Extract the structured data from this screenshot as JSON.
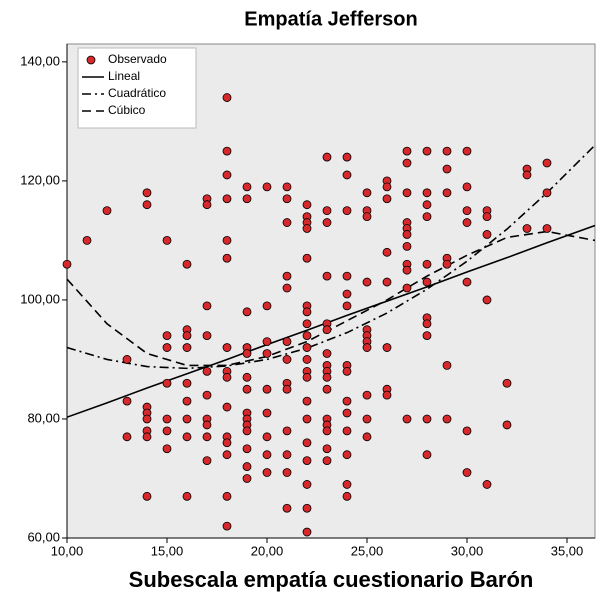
{
  "chart_data": {
    "type": "scatter",
    "title": "Empatía Jefferson",
    "x_label": "Subescala empatía cuestionario Barón",
    "xlim": [
      10,
      36.4
    ],
    "ylim": [
      60,
      143
    ],
    "xticks": [
      {
        "value": 10,
        "label": "10,00"
      },
      {
        "value": 15,
        "label": "15,00"
      },
      {
        "value": 20,
        "label": "20,00"
      },
      {
        "value": 25,
        "label": "25,00"
      },
      {
        "value": 30,
        "label": "30,00"
      },
      {
        "value": 35,
        "label": "35,00"
      }
    ],
    "yticks": [
      {
        "value": 60,
        "label": "60,00"
      },
      {
        "value": 80,
        "label": "80,00"
      },
      {
        "value": 100,
        "label": "100,00"
      },
      {
        "value": 120,
        "label": "120,00"
      },
      {
        "value": 140,
        "label": "140,00"
      }
    ],
    "legend": "top-left",
    "series": [
      {
        "name": "Observado",
        "type": "scatter",
        "color": "#d7282c",
        "x": [
          10,
          11,
          12,
          13,
          13,
          13,
          14,
          14,
          14,
          14,
          14,
          14,
          14,
          14,
          15,
          15,
          15,
          15,
          15,
          15,
          15,
          16,
          16,
          16,
          16,
          16,
          16,
          16,
          16,
          16,
          17,
          17,
          17,
          17,
          17,
          17,
          17,
          17,
          17,
          17,
          18,
          18,
          18,
          18,
          18,
          18,
          18,
          18,
          18,
          18,
          18,
          18,
          18,
          18,
          18,
          19,
          19,
          19,
          19,
          19,
          19,
          19,
          19,
          19,
          19,
          19,
          19,
          19,
          19,
          20,
          20,
          20,
          20,
          20,
          20,
          20,
          20,
          20,
          21,
          21,
          21,
          21,
          21,
          21,
          21,
          21,
          21,
          21,
          21,
          21,
          21,
          22,
          22,
          22,
          22,
          22,
          22,
          22,
          22,
          22,
          22,
          22,
          22,
          22,
          22,
          22,
          22,
          22,
          22,
          22,
          22,
          23,
          23,
          23,
          23,
          23,
          23,
          23,
          23,
          23,
          23,
          23,
          23,
          23,
          23,
          23,
          23,
          24,
          24,
          24,
          24,
          24,
          24,
          24,
          24,
          24,
          24,
          24,
          24,
          24,
          24,
          25,
          25,
          25,
          25,
          25,
          25,
          25,
          25,
          25,
          25,
          25,
          26,
          26,
          26,
          26,
          26,
          26,
          26,
          26,
          27,
          27,
          27,
          27,
          27,
          27,
          27,
          27,
          27,
          27,
          27,
          28,
          28,
          28,
          28,
          28,
          28,
          28,
          28,
          28,
          28,
          28,
          29,
          29,
          29,
          29,
          29,
          29,
          29,
          30,
          30,
          30,
          30,
          30,
          30,
          30,
          31,
          31,
          31,
          31,
          31,
          32,
          32,
          33,
          33,
          33,
          34,
          34,
          34
        ],
        "values": [
          106,
          110,
          115,
          90,
          83,
          77,
          118,
          116,
          82,
          81,
          80,
          78,
          77,
          67,
          110,
          94,
          92,
          86,
          80,
          78,
          75,
          106,
          95,
          94,
          92,
          86,
          83,
          80,
          77,
          67,
          117,
          116,
          99,
          94,
          88,
          84,
          80,
          79,
          77,
          73,
          134,
          125,
          121,
          117,
          110,
          107,
          92,
          88,
          87,
          82,
          77,
          76,
          74,
          67,
          62,
          119,
          117,
          98,
          92,
          91,
          87,
          85,
          81,
          80,
          79,
          78,
          75,
          72,
          70,
          119,
          99,
          93,
          91,
          85,
          81,
          77,
          74,
          71,
          119,
          117,
          113,
          104,
          102,
          93,
          90,
          86,
          85,
          78,
          74,
          71,
          65,
          116,
          114,
          113,
          112,
          107,
          99,
          98,
          96,
          94,
          92,
          90,
          88,
          87,
          83,
          80,
          76,
          73,
          69,
          65,
          61,
          124,
          115,
          113,
          104,
          96,
          95,
          91,
          89,
          88,
          87,
          85,
          80,
          79,
          78,
          75,
          73,
          124,
          121,
          115,
          104,
          101,
          99,
          89,
          88,
          83,
          81,
          78,
          74,
          69,
          67,
          118,
          115,
          114,
          103,
          95,
          94,
          93,
          92,
          84,
          80,
          77,
          120,
          119,
          117,
          108,
          103,
          92,
          85,
          84,
          125,
          123,
          118,
          113,
          112,
          111,
          109,
          106,
          105,
          102,
          80,
          125,
          118,
          116,
          114,
          106,
          103,
          97,
          96,
          94,
          80,
          74,
          125,
          122,
          118,
          107,
          106,
          89,
          80,
          125,
          119,
          115,
          113,
          103,
          78,
          71,
          115,
          114,
          111,
          100,
          69,
          86,
          79,
          122,
          121,
          112,
          123,
          118,
          112
        ]
      },
      {
        "name": "Lineal",
        "type": "line",
        "color": "#000000",
        "dash": "solid",
        "x": [
          10,
          12,
          14,
          16,
          18,
          20,
          22,
          24,
          26,
          28,
          30,
          32,
          34,
          36.4
        ],
        "values": [
          80.3,
          82.7,
          85.2,
          87.6,
          90.0,
          92.5,
          94.9,
          97.4,
          99.8,
          102.2,
          104.7,
          107.1,
          109.6,
          112.5
        ]
      },
      {
        "name": "Cuadrático",
        "type": "line",
        "color": "#000000",
        "dash": "dashdot",
        "x": [
          10,
          12,
          14,
          16,
          18,
          20,
          22,
          24,
          26,
          28,
          30,
          32,
          34,
          36.4
        ],
        "values": [
          92,
          90,
          88.8,
          88.5,
          88.9,
          90,
          91.9,
          94.5,
          97.8,
          101.8,
          106.5,
          111.9,
          118,
          126
        ]
      },
      {
        "name": "Cúbico",
        "type": "line",
        "color": "#000000",
        "dash": "dash",
        "x": [
          10,
          12,
          14,
          16,
          18,
          20,
          22,
          24,
          26,
          28,
          30,
          32,
          34,
          36.4
        ],
        "values": [
          103.5,
          96,
          91,
          89,
          89,
          90.5,
          93,
          96.5,
          100,
          104,
          107.5,
          110.5,
          111.5,
          110
        ]
      }
    ]
  }
}
